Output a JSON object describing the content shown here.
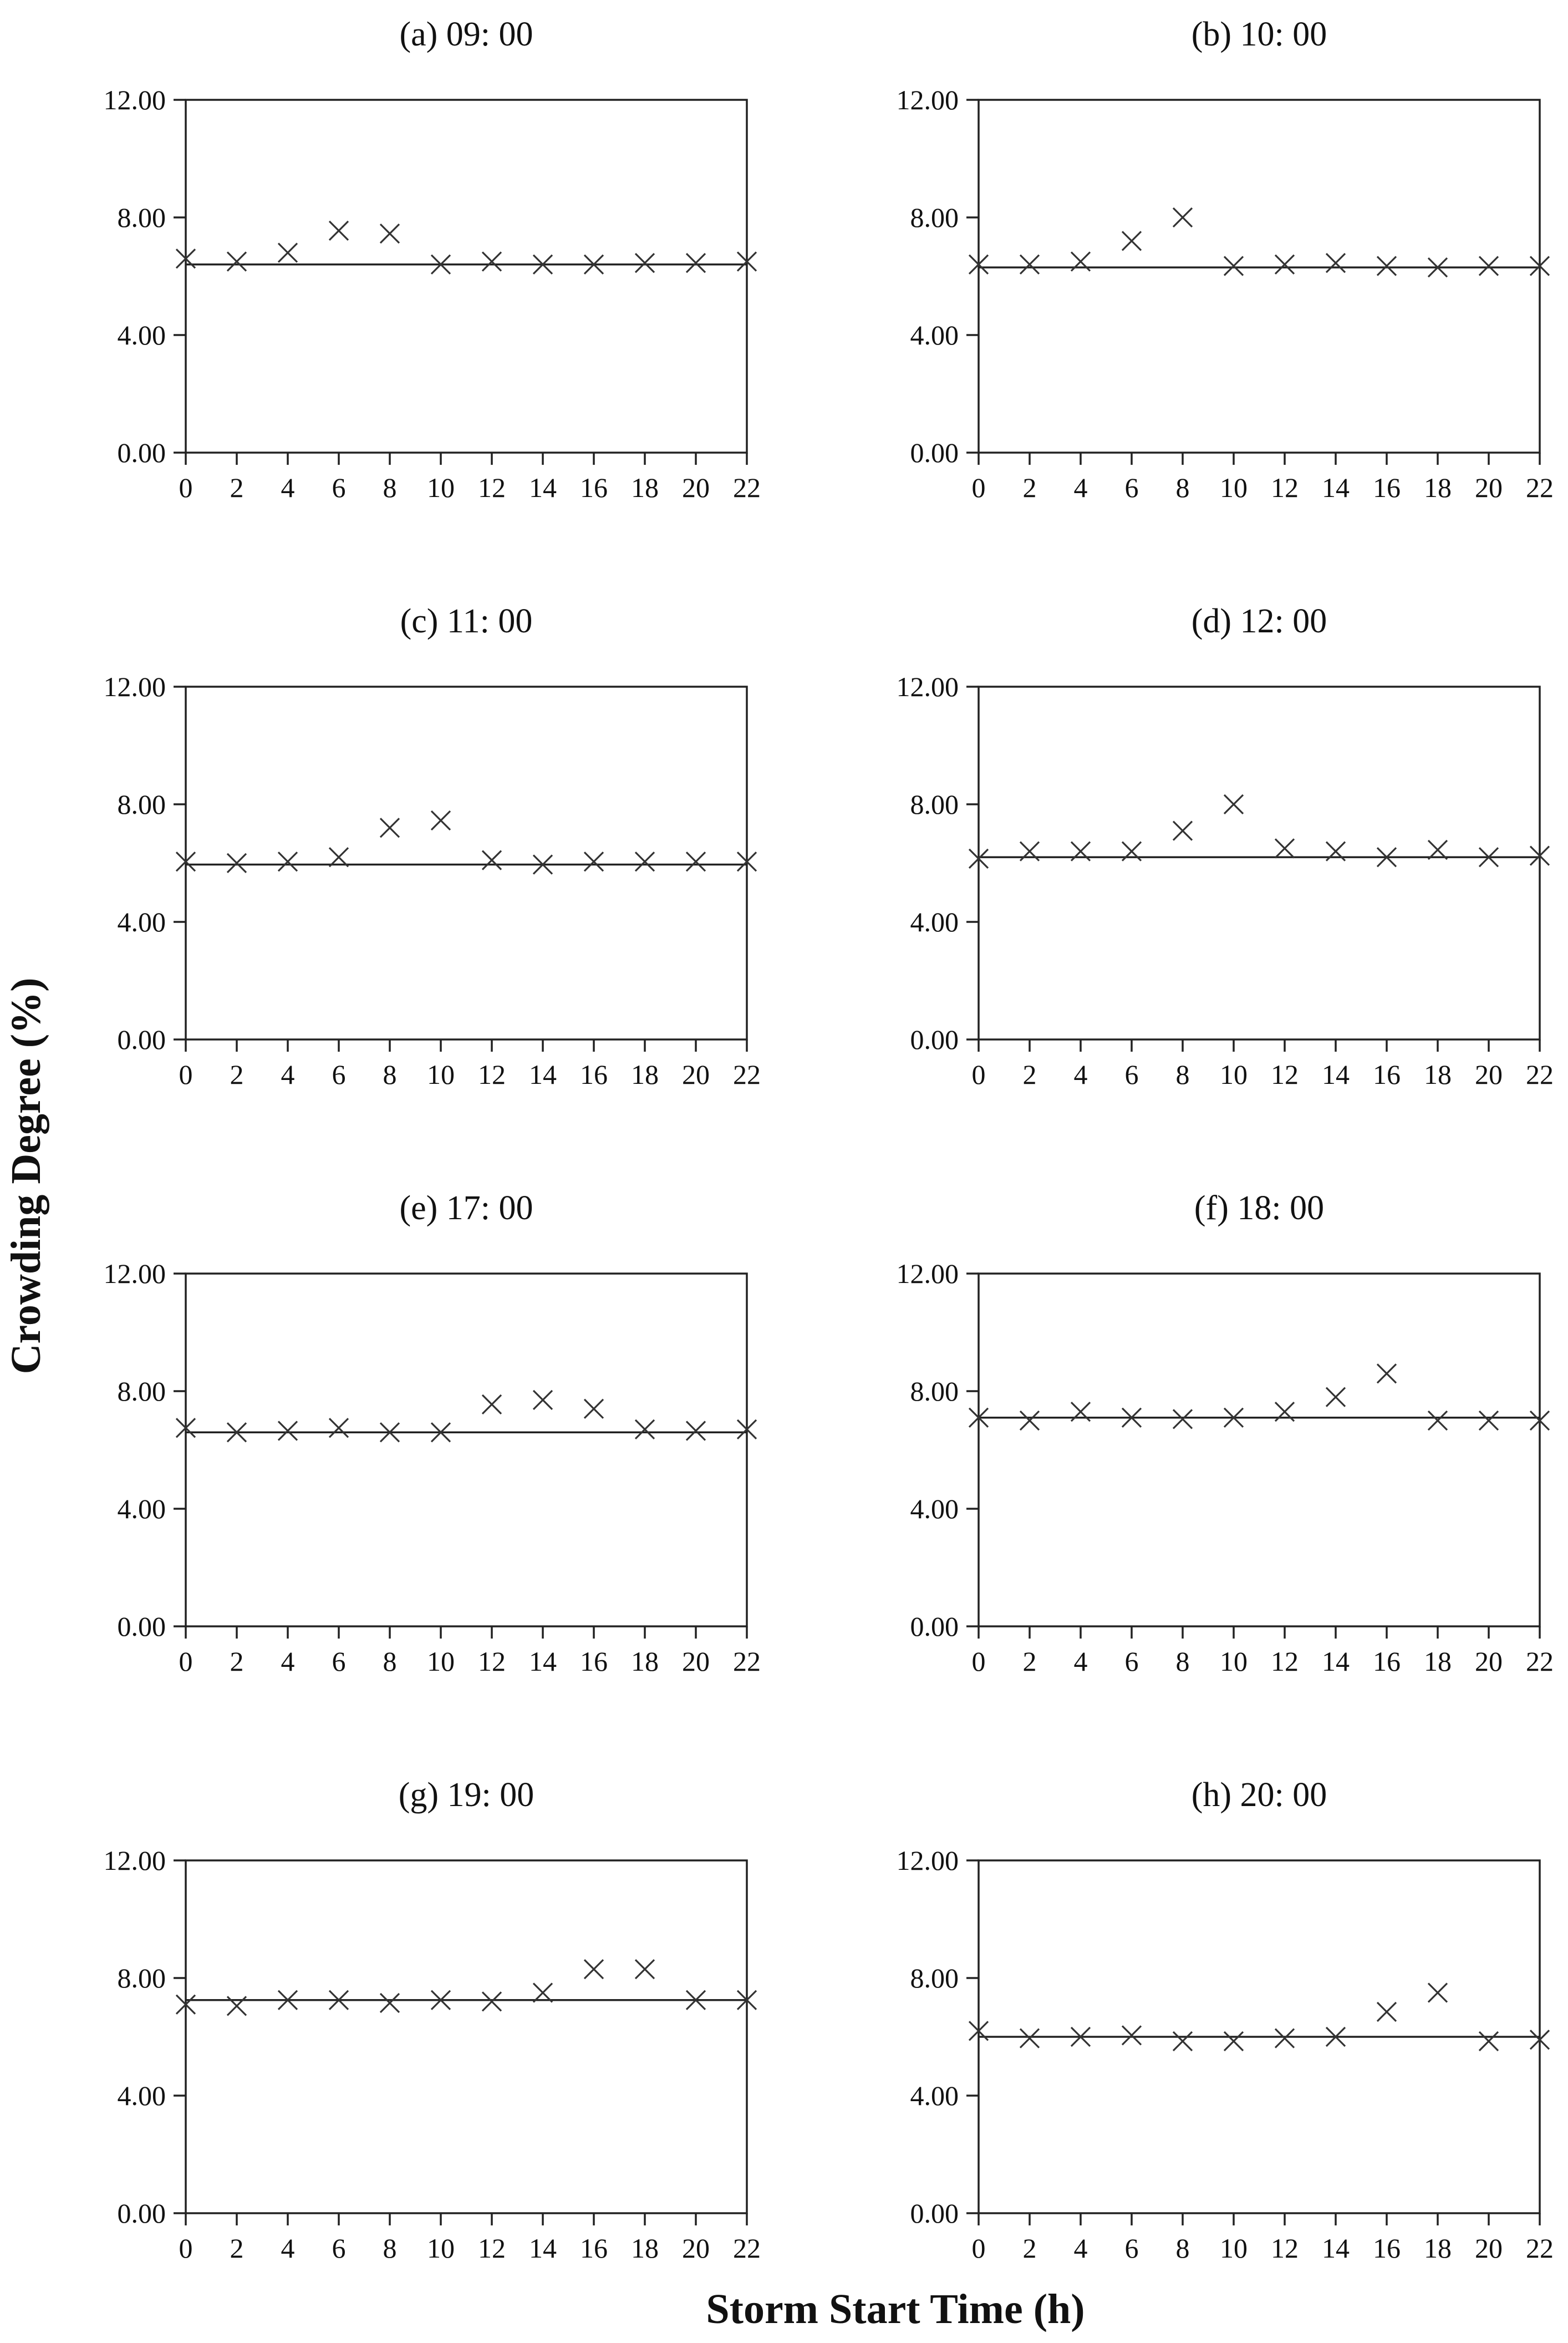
{
  "figure": {
    "ylabel": "Crowding Degree (%)",
    "xlabel": "Storm Start Time (h)"
  },
  "chart_data": [
    {
      "type": "scatter",
      "title": "(a) 09: 00",
      "x": [
        0,
        2,
        4,
        6,
        8,
        10,
        12,
        14,
        16,
        18,
        20,
        22
      ],
      "y": [
        6.6,
        6.5,
        6.8,
        7.55,
        7.45,
        6.4,
        6.5,
        6.4,
        6.4,
        6.45,
        6.45,
        6.5
      ],
      "reference": 6.4,
      "xticks": [
        "0",
        "2",
        "4",
        "6",
        "8",
        "10",
        "12",
        "14",
        "16",
        "18",
        "20",
        "22"
      ],
      "yticks": [
        "0.00",
        "4.00",
        "8.00",
        "12.00"
      ],
      "xlim": [
        0,
        22
      ],
      "ylim": [
        0,
        12
      ],
      "grid": false,
      "legend": false
    },
    {
      "type": "scatter",
      "title": "(b) 10: 00",
      "x": [
        0,
        2,
        4,
        6,
        8,
        10,
        12,
        14,
        16,
        18,
        20,
        22
      ],
      "y": [
        6.4,
        6.4,
        6.5,
        7.2,
        8.0,
        6.35,
        6.4,
        6.45,
        6.35,
        6.3,
        6.35,
        6.35
      ],
      "reference": 6.3,
      "xticks": [
        "0",
        "2",
        "4",
        "6",
        "8",
        "10",
        "12",
        "14",
        "16",
        "18",
        "20",
        "22"
      ],
      "yticks": [
        "0.00",
        "4.00",
        "8.00",
        "12.00"
      ],
      "xlim": [
        0,
        22
      ],
      "ylim": [
        0,
        12
      ],
      "grid": false,
      "legend": false
    },
    {
      "type": "scatter",
      "title": "(c) 11: 00",
      "x": [
        0,
        2,
        4,
        6,
        8,
        10,
        12,
        14,
        16,
        18,
        20,
        22
      ],
      "y": [
        6.05,
        6.0,
        6.05,
        6.2,
        7.2,
        7.45,
        6.1,
        5.95,
        6.05,
        6.05,
        6.05,
        6.05
      ],
      "reference": 5.95,
      "xticks": [
        "0",
        "2",
        "4",
        "6",
        "8",
        "10",
        "12",
        "14",
        "16",
        "18",
        "20",
        "22"
      ],
      "yticks": [
        "0.00",
        "4.00",
        "8.00",
        "12.00"
      ],
      "xlim": [
        0,
        22
      ],
      "ylim": [
        0,
        12
      ],
      "grid": false,
      "legend": false
    },
    {
      "type": "scatter",
      "title": "(d) 12: 00",
      "x": [
        0,
        2,
        4,
        6,
        8,
        10,
        12,
        14,
        16,
        18,
        20,
        22
      ],
      "y": [
        6.15,
        6.4,
        6.4,
        6.4,
        7.1,
        8.0,
        6.5,
        6.4,
        6.2,
        6.45,
        6.2,
        6.25
      ],
      "reference": 6.2,
      "xticks": [
        "0",
        "2",
        "4",
        "6",
        "8",
        "10",
        "12",
        "14",
        "16",
        "18",
        "20",
        "22"
      ],
      "yticks": [
        "0.00",
        "4.00",
        "8.00",
        "12.00"
      ],
      "xlim": [
        0,
        22
      ],
      "ylim": [
        0,
        12
      ],
      "grid": false,
      "legend": false
    },
    {
      "type": "scatter",
      "title": "(e) 17: 00",
      "x": [
        0,
        2,
        4,
        6,
        8,
        10,
        12,
        14,
        16,
        18,
        20,
        22
      ],
      "y": [
        6.75,
        6.6,
        6.65,
        6.75,
        6.6,
        6.6,
        7.55,
        7.7,
        7.4,
        6.7,
        6.65,
        6.7
      ],
      "reference": 6.6,
      "xticks": [
        "0",
        "2",
        "4",
        "6",
        "8",
        "10",
        "12",
        "14",
        "16",
        "18",
        "20",
        "22"
      ],
      "yticks": [
        "0.00",
        "4.00",
        "8.00",
        "12.00"
      ],
      "xlim": [
        0,
        22
      ],
      "ylim": [
        0,
        12
      ],
      "grid": false,
      "legend": false
    },
    {
      "type": "scatter",
      "title": "(f) 18: 00",
      "x": [
        0,
        2,
        4,
        6,
        8,
        10,
        12,
        14,
        16,
        18,
        20,
        22
      ],
      "y": [
        7.1,
        7.0,
        7.3,
        7.1,
        7.05,
        7.1,
        7.3,
        7.8,
        8.6,
        7.0,
        7.0,
        7.0
      ],
      "reference": 7.1,
      "xticks": [
        "0",
        "2",
        "4",
        "6",
        "8",
        "10",
        "12",
        "14",
        "16",
        "18",
        "20",
        "22"
      ],
      "yticks": [
        "0.00",
        "4.00",
        "8.00",
        "12.00"
      ],
      "xlim": [
        0,
        22
      ],
      "ylim": [
        0,
        12
      ],
      "grid": false,
      "legend": false
    },
    {
      "type": "scatter",
      "title": "(g) 19: 00",
      "x": [
        0,
        2,
        4,
        6,
        8,
        10,
        12,
        14,
        16,
        18,
        20,
        22
      ],
      "y": [
        7.1,
        7.05,
        7.25,
        7.25,
        7.15,
        7.25,
        7.2,
        7.5,
        8.3,
        8.3,
        7.25,
        7.25
      ],
      "reference": 7.25,
      "xticks": [
        "0",
        "2",
        "4",
        "6",
        "8",
        "10",
        "12",
        "14",
        "16",
        "18",
        "20",
        "22"
      ],
      "yticks": [
        "0.00",
        "4.00",
        "8.00",
        "12.00"
      ],
      "xlim": [
        0,
        22
      ],
      "ylim": [
        0,
        12
      ],
      "grid": false,
      "legend": false
    },
    {
      "type": "scatter",
      "title": "(h) 20: 00",
      "x": [
        0,
        2,
        4,
        6,
        8,
        10,
        12,
        14,
        16,
        18,
        20,
        22
      ],
      "y": [
        6.2,
        5.95,
        6.0,
        6.05,
        5.85,
        5.85,
        5.95,
        6.0,
        6.85,
        7.5,
        5.85,
        5.9
      ],
      "reference": 6.0,
      "xticks": [
        "0",
        "2",
        "4",
        "6",
        "8",
        "10",
        "12",
        "14",
        "16",
        "18",
        "20",
        "22"
      ],
      "yticks": [
        "0.00",
        "4.00",
        "8.00",
        "12.00"
      ],
      "xlim": [
        0,
        22
      ],
      "ylim": [
        0,
        12
      ],
      "grid": false,
      "legend": false
    }
  ]
}
